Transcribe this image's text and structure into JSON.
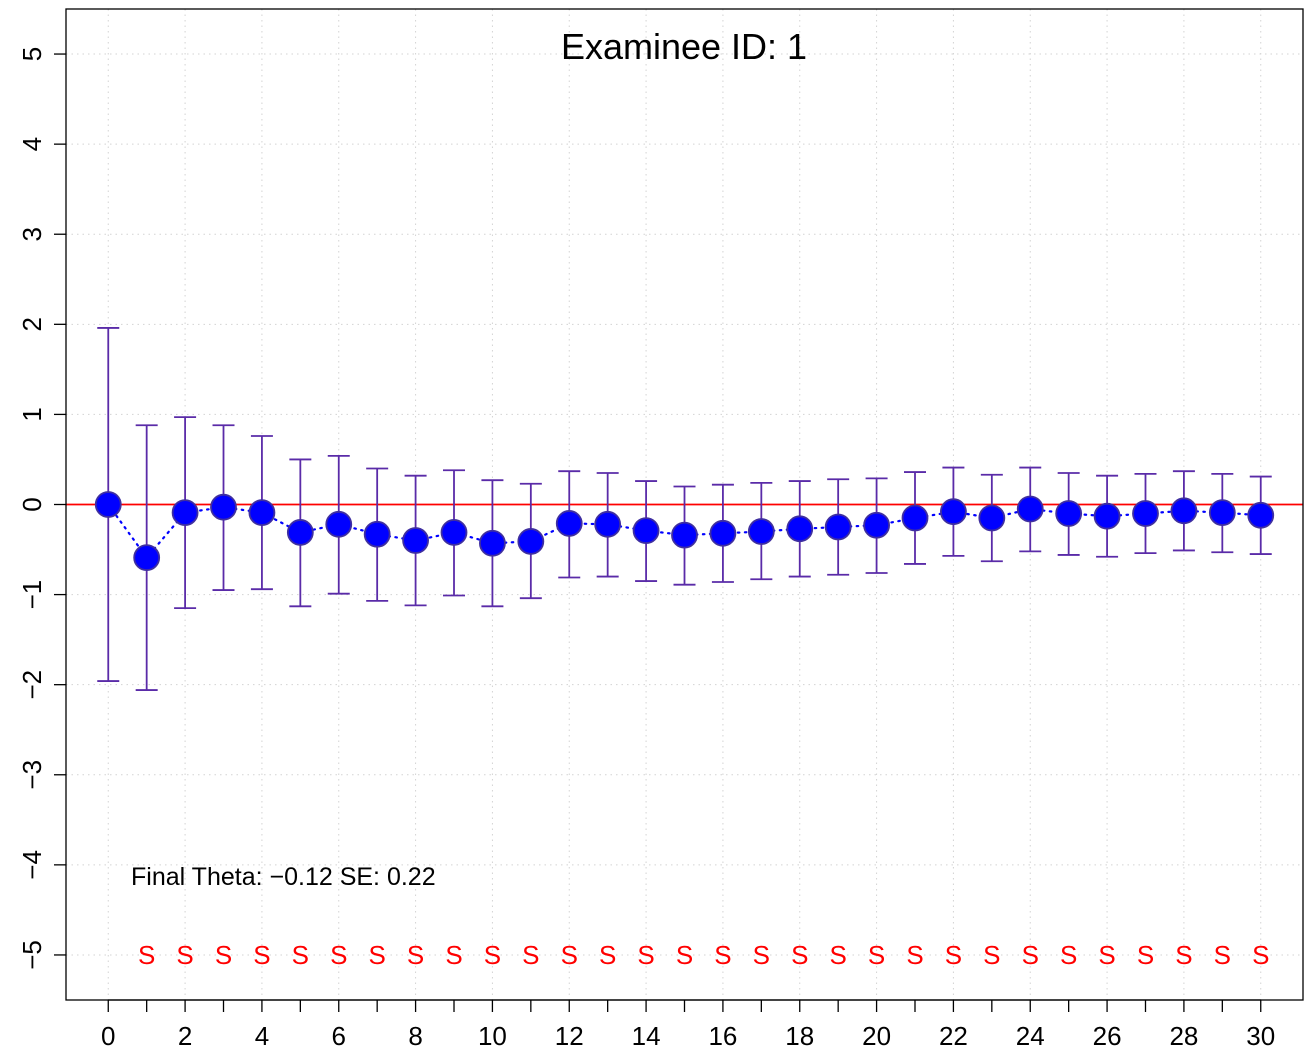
{
  "chart_data": {
    "type": "scatter",
    "title": "Examinee ID: 1",
    "xlabel": "",
    "ylabel": "",
    "xlim": [
      -1.1,
      31.1
    ],
    "ylim": [
      -5.5,
      5.5
    ],
    "x_ticks": [
      0,
      2,
      4,
      6,
      8,
      10,
      12,
      14,
      16,
      18,
      20,
      22,
      24,
      26,
      28,
      30
    ],
    "x_minor_ticks": [
      1,
      3,
      5,
      7,
      9,
      11,
      13,
      15,
      17,
      19,
      21,
      23,
      25,
      27,
      29
    ],
    "y_ticks": [
      -5,
      -4,
      -3,
      -2,
      -1,
      0,
      1,
      2,
      3,
      4,
      5
    ],
    "y_tick_labels": [
      "−5",
      "−4",
      "−3",
      "−2",
      "−1",
      "0",
      "1",
      "2",
      "3",
      "4",
      "5"
    ],
    "grid": true,
    "reference_line_y": 0,
    "x": [
      0,
      1,
      2,
      3,
      4,
      5,
      6,
      7,
      8,
      9,
      10,
      11,
      12,
      13,
      14,
      15,
      16,
      17,
      18,
      19,
      20,
      21,
      22,
      23,
      24,
      25,
      26,
      27,
      28,
      29,
      30
    ],
    "theta": [
      0.0,
      -0.59,
      -0.09,
      -0.03,
      -0.09,
      -0.31,
      -0.22,
      -0.33,
      -0.4,
      -0.31,
      -0.43,
      -0.41,
      -0.21,
      -0.22,
      -0.29,
      -0.34,
      -0.32,
      -0.3,
      -0.27,
      -0.25,
      -0.23,
      -0.15,
      -0.08,
      -0.15,
      -0.05,
      -0.1,
      -0.13,
      -0.1,
      -0.07,
      -0.09,
      -0.12
    ],
    "upper": [
      1.96,
      0.88,
      0.97,
      0.88,
      0.76,
      0.5,
      0.54,
      0.4,
      0.32,
      0.38,
      0.27,
      0.23,
      0.37,
      0.35,
      0.26,
      0.2,
      0.22,
      0.24,
      0.26,
      0.28,
      0.29,
      0.36,
      0.41,
      0.33,
      0.41,
      0.35,
      0.32,
      0.34,
      0.37,
      0.34,
      0.31
    ],
    "lower": [
      -1.96,
      -2.06,
      -1.15,
      -0.95,
      -0.94,
      -1.13,
      -0.99,
      -1.07,
      -1.12,
      -1.01,
      -1.13,
      -1.04,
      -0.81,
      -0.8,
      -0.85,
      -0.89,
      -0.86,
      -0.83,
      -0.8,
      -0.78,
      -0.76,
      -0.66,
      -0.57,
      -0.63,
      -0.52,
      -0.56,
      -0.58,
      -0.54,
      -0.51,
      -0.53,
      -0.55
    ],
    "item_labels": [
      "S",
      "S",
      "S",
      "S",
      "S",
      "S",
      "S",
      "S",
      "S",
      "S",
      "S",
      "S",
      "S",
      "S",
      "S",
      "S",
      "S",
      "S",
      "S",
      "S",
      "S",
      "S",
      "S",
      "S",
      "S",
      "S",
      "S",
      "S",
      "S",
      "S"
    ],
    "item_label_y": -5,
    "annotation": "Final Theta:  −0.12  SE:  0.22",
    "colors": {
      "points_fill": "#0000ff",
      "points_stroke": "#3f2fa0",
      "error_bars": "#5a2ba8",
      "path": "#0000ff",
      "reference_line": "#ff0000",
      "item_labels": "#ff0000",
      "grid": "#d3d3d3"
    }
  }
}
